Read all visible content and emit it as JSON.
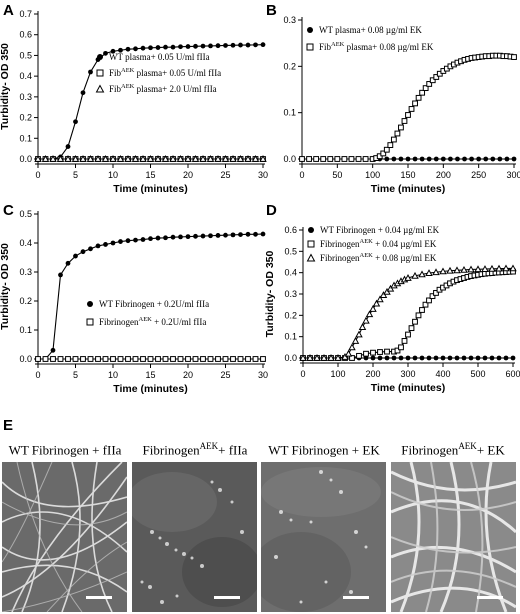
{
  "chart_data": [
    {
      "panel": "A",
      "type": "line",
      "xlabel": "Time (minutes)",
      "ylabel": "Turbidity- OD 350",
      "xlim": [
        0,
        30
      ],
      "ylim": [
        0,
        0.7
      ],
      "xticks": [
        0,
        5,
        10,
        15,
        20,
        25,
        30
      ],
      "yticks": [
        0.0,
        0.1,
        0.2,
        0.3,
        0.4,
        0.5,
        0.6,
        0.7
      ],
      "legend_position": "center-right",
      "series": [
        {
          "name": "WT plasma+ 0.05 U/ml fIIa",
          "marker": "filled-circle",
          "x": [
            0,
            1,
            2,
            3,
            4,
            5,
            6,
            7,
            8,
            9,
            10,
            11,
            12,
            13,
            14,
            15,
            16,
            17,
            18,
            19,
            20,
            21,
            22,
            23,
            24,
            25,
            26,
            27,
            28,
            29,
            30
          ],
          "y": [
            0,
            0,
            0,
            0.01,
            0.06,
            0.18,
            0.32,
            0.42,
            0.48,
            0.51,
            0.52,
            0.525,
            0.53,
            0.532,
            0.535,
            0.537,
            0.538,
            0.54,
            0.54,
            0.542,
            0.543,
            0.544,
            0.545,
            0.546,
            0.547,
            0.548,
            0.549,
            0.55,
            0.55,
            0.551,
            0.552
          ]
        },
        {
          "name_main": "Fib",
          "name_sup": "AEK",
          "name_rest": " plasma+ 0.05 U/ml fIIa",
          "marker": "open-square",
          "x": [
            0,
            1,
            2,
            3,
            4,
            5,
            6,
            7,
            8,
            9,
            10,
            11,
            12,
            13,
            14,
            15,
            16,
            17,
            18,
            19,
            20,
            21,
            22,
            23,
            24,
            25,
            26,
            27,
            28,
            29,
            30
          ],
          "y": [
            0,
            0,
            0,
            0,
            0,
            0,
            0,
            0,
            0,
            0,
            0,
            0,
            0,
            0,
            0,
            0,
            0,
            0,
            0,
            0,
            0,
            0,
            0,
            0,
            0,
            0,
            0,
            0,
            0,
            0,
            0
          ]
        },
        {
          "name_main": "Fib",
          "name_sup": "AEK",
          "name_rest": " plasma+ 2.0 U/ml fIIa",
          "marker": "open-triangle",
          "x": [
            0,
            1,
            2,
            3,
            4,
            5,
            6,
            7,
            8,
            9,
            10,
            11,
            12,
            13,
            14,
            15,
            16,
            17,
            18,
            19,
            20,
            21,
            22,
            23,
            24,
            25,
            26,
            27,
            28,
            29,
            30
          ],
          "y": [
            0,
            0,
            0,
            0,
            0,
            0,
            0,
            0,
            0,
            0,
            0,
            0,
            0,
            0,
            0,
            0,
            0,
            0,
            0,
            0,
            0,
            0,
            0,
            0,
            0,
            0,
            0,
            0,
            0,
            0,
            0
          ]
        }
      ]
    },
    {
      "panel": "B",
      "type": "line",
      "xlabel": "Time (minutes)",
      "ylabel": "",
      "xlim": [
        0,
        300
      ],
      "ylim": [
        0,
        0.3
      ],
      "xticks": [
        0,
        50,
        100,
        150,
        200,
        250,
        300
      ],
      "yticks": [
        0.0,
        0.1,
        0.2,
        0.3
      ],
      "legend_position": "top-left",
      "series": [
        {
          "name": "WT plasma+ 0.08 µg/ml EK",
          "marker": "filled-circle",
          "x": [
            0,
            10,
            20,
            30,
            40,
            50,
            60,
            70,
            80,
            90,
            100,
            110,
            120,
            130,
            140,
            150,
            160,
            170,
            180,
            190,
            200,
            210,
            220,
            230,
            240,
            250,
            260,
            270,
            280,
            290,
            300
          ],
          "y": [
            0,
            0,
            0,
            0,
            0,
            0,
            0,
            0,
            0,
            0,
            0,
            0,
            0,
            0,
            0,
            0,
            0,
            0,
            0,
            0,
            0,
            0,
            0,
            0,
            0,
            0,
            0,
            0,
            0,
            0,
            0
          ]
        },
        {
          "name_main": "Fib",
          "name_sup": "AEK",
          "name_rest": " plasma+ 0.08 µg/ml EK",
          "marker": "open-square",
          "x": [
            0,
            10,
            20,
            30,
            40,
            50,
            60,
            70,
            80,
            90,
            100,
            105,
            110,
            115,
            120,
            125,
            130,
            135,
            140,
            145,
            150,
            155,
            160,
            165,
            170,
            175,
            180,
            185,
            190,
            195,
            200,
            205,
            210,
            215,
            220,
            225,
            230,
            235,
            240,
            245,
            250,
            255,
            260,
            265,
            270,
            275,
            280,
            285,
            290,
            295,
            300
          ],
          "y": [
            0,
            0,
            0,
            0,
            0,
            0,
            0,
            0,
            0,
            0,
            0,
            0.002,
            0.006,
            0.012,
            0.02,
            0.03,
            0.042,
            0.055,
            0.068,
            0.082,
            0.095,
            0.108,
            0.12,
            0.132,
            0.143,
            0.153,
            0.162,
            0.17,
            0.177,
            0.184,
            0.19,
            0.195,
            0.2,
            0.204,
            0.208,
            0.211,
            0.214,
            0.216,
            0.218,
            0.219,
            0.22,
            0.221,
            0.222,
            0.222,
            0.223,
            0.223,
            0.223,
            0.222,
            0.222,
            0.221,
            0.22
          ]
        }
      ]
    },
    {
      "panel": "C",
      "type": "line",
      "xlabel": "Time (minutes)",
      "ylabel": "Turbidity- OD 350",
      "xlim": [
        0,
        30
      ],
      "ylim": [
        0,
        0.5
      ],
      "xticks": [
        0,
        5,
        10,
        15,
        20,
        25,
        30
      ],
      "yticks": [
        0.0,
        0.1,
        0.2,
        0.3,
        0.4,
        0.5
      ],
      "legend_position": "center-right",
      "series": [
        {
          "name": "WT Fibrinogen + 0.2U/ml fIIa",
          "marker": "filled-circle",
          "x": [
            0,
            1,
            2,
            3,
            4,
            5,
            6,
            7,
            8,
            9,
            10,
            11,
            12,
            13,
            14,
            15,
            16,
            17,
            18,
            19,
            20,
            21,
            22,
            23,
            24,
            25,
            26,
            27,
            28,
            29,
            30
          ],
          "y": [
            0,
            0,
            0.03,
            0.29,
            0.33,
            0.355,
            0.37,
            0.38,
            0.39,
            0.395,
            0.4,
            0.405,
            0.408,
            0.41,
            0.412,
            0.415,
            0.417,
            0.418,
            0.42,
            0.421,
            0.422,
            0.423,
            0.424,
            0.425,
            0.426,
            0.427,
            0.428,
            0.429,
            0.43,
            0.43,
            0.431
          ]
        },
        {
          "name_main": "Fibrinogen",
          "name_sup": "AEK",
          "name_rest": " + 0.2U/ml fIIa",
          "marker": "open-square",
          "x": [
            0,
            1,
            2,
            3,
            4,
            5,
            6,
            7,
            8,
            9,
            10,
            11,
            12,
            13,
            14,
            15,
            16,
            17,
            18,
            19,
            20,
            21,
            22,
            23,
            24,
            25,
            26,
            27,
            28,
            29,
            30
          ],
          "y": [
            0,
            0,
            0,
            0,
            0,
            0,
            0,
            0,
            0,
            0,
            0,
            0,
            0,
            0,
            0,
            0,
            0,
            0,
            0,
            0,
            0,
            0,
            0,
            0,
            0,
            0,
            0,
            0,
            0,
            0,
            0
          ]
        }
      ]
    },
    {
      "panel": "D",
      "type": "line",
      "xlabel": "Time (minutes)",
      "ylabel": "Turbidity- OD 350",
      "xlim": [
        0,
        600
      ],
      "ylim": [
        0,
        0.6
      ],
      "xticks": [
        0,
        100,
        200,
        300,
        400,
        500,
        600
      ],
      "yticks": [
        0.0,
        0.1,
        0.2,
        0.3,
        0.4,
        0.5,
        0.6
      ],
      "legend_position": "top-left",
      "series": [
        {
          "name": "WT Fibrinogen + 0.04 µg/ml EK",
          "marker": "filled-circle",
          "x": [
            0,
            20,
            40,
            60,
            80,
            100,
            120,
            140,
            160,
            180,
            200,
            220,
            240,
            260,
            280,
            300,
            320,
            340,
            360,
            380,
            400,
            420,
            440,
            460,
            480,
            500,
            520,
            540,
            560,
            580,
            600
          ],
          "y": [
            0,
            0,
            0,
            0,
            0,
            0,
            0,
            0,
            0,
            0,
            0,
            0,
            0,
            0,
            0,
            0,
            0,
            0,
            0,
            0,
            0,
            0,
            0,
            0,
            0,
            0,
            0,
            0,
            0,
            0,
            0
          ]
        },
        {
          "name_main": "Fibrinogen",
          "name_sup": "AEK",
          "name_rest": " + 0.04 µg/ml EK",
          "marker": "open-square",
          "x": [
            0,
            20,
            40,
            60,
            80,
            100,
            120,
            140,
            160,
            180,
            200,
            220,
            240,
            260,
            270,
            280,
            290,
            300,
            310,
            320,
            330,
            340,
            350,
            360,
            370,
            380,
            390,
            400,
            410,
            420,
            430,
            440,
            450,
            460,
            470,
            480,
            490,
            500,
            510,
            520,
            530,
            540,
            550,
            560,
            570,
            580,
            590,
            600
          ],
          "y": [
            0,
            0,
            0,
            0,
            0,
            0,
            0,
            0,
            0.01,
            0.02,
            0.025,
            0.028,
            0.03,
            0.03,
            0.035,
            0.05,
            0.08,
            0.11,
            0.14,
            0.17,
            0.2,
            0.225,
            0.25,
            0.27,
            0.29,
            0.305,
            0.32,
            0.33,
            0.34,
            0.35,
            0.358,
            0.365,
            0.37,
            0.375,
            0.38,
            0.384,
            0.387,
            0.39,
            0.393,
            0.395,
            0.397,
            0.398,
            0.4,
            0.401,
            0.402,
            0.403,
            0.404,
            0.405
          ]
        },
        {
          "name_main": "Fibrinogen",
          "name_sup": "AEK",
          "name_rest": " + 0.08 µg/ml EK",
          "marker": "open-triangle",
          "x": [
            0,
            20,
            40,
            60,
            80,
            100,
            120,
            130,
            140,
            150,
            160,
            170,
            180,
            190,
            200,
            210,
            220,
            230,
            240,
            250,
            260,
            270,
            280,
            290,
            300,
            320,
            340,
            360,
            380,
            400,
            420,
            440,
            460,
            480,
            500,
            520,
            540,
            560,
            580,
            600
          ],
          "y": [
            0,
            0,
            0,
            0,
            0,
            0,
            0.005,
            0.02,
            0.05,
            0.08,
            0.11,
            0.145,
            0.175,
            0.205,
            0.23,
            0.255,
            0.275,
            0.295,
            0.31,
            0.325,
            0.34,
            0.35,
            0.36,
            0.368,
            0.375,
            0.385,
            0.392,
            0.398,
            0.402,
            0.406,
            0.409,
            0.411,
            0.413,
            0.415,
            0.416,
            0.417,
            0.418,
            0.419,
            0.42,
            0.42
          ]
        }
      ]
    }
  ],
  "panel_labels": {
    "a": "A",
    "b": "B",
    "c": "C",
    "d": "D",
    "e": "E"
  },
  "images": [
    {
      "caption_main": "WT Fibrinogen + fIIa",
      "caption_sup": "",
      "caption_rest": ""
    },
    {
      "caption_main": "Fibrinogen",
      "caption_sup": "AEK",
      "caption_rest": "+ fIIa"
    },
    {
      "caption_main": "WT Fibrinogen + EK",
      "caption_sup": "",
      "caption_rest": ""
    },
    {
      "caption_main": "Fibrinogen",
      "caption_sup": "AEK",
      "caption_rest": "+ EK"
    }
  ]
}
